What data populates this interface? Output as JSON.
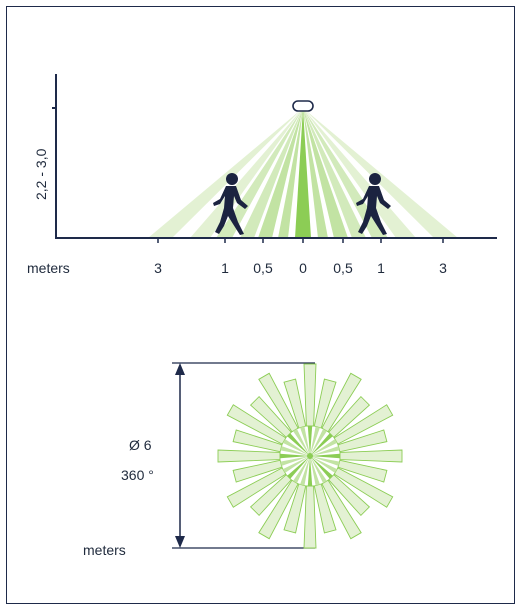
{
  "side_view": {
    "height_label": "2,2 - 3,0",
    "unit_label": "meters",
    "ticks": [
      "3",
      "1",
      "0,5",
      "0",
      "0,5",
      "1",
      "3"
    ]
  },
  "top_view": {
    "diameter_label": "Ø 6",
    "angle_label": "360 °",
    "unit_label": "meters"
  },
  "colors": {
    "line": "#1e2a4a",
    "figure": "#1b2340",
    "zone_light": "#e3f1d3",
    "zone_mid": "#c2e3a3",
    "zone_strong": "#8ccd55"
  }
}
